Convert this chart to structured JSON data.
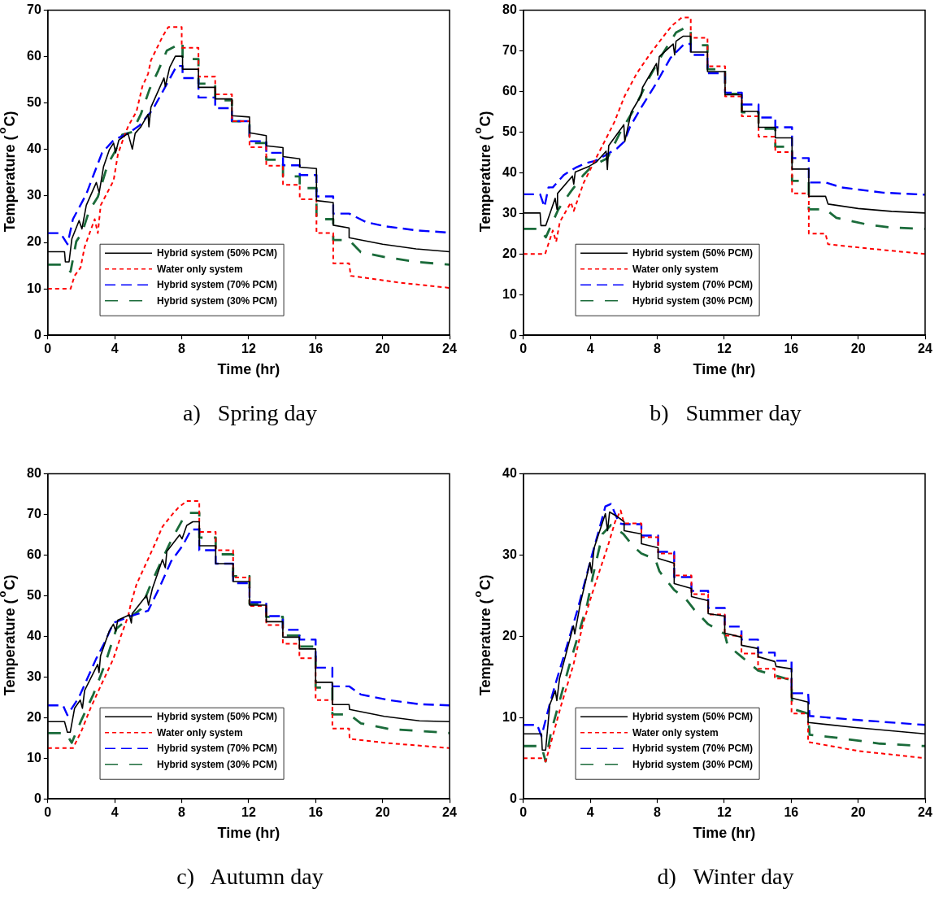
{
  "chart_data": [
    {
      "type": "line",
      "title": "a)   Spring day",
      "xlabel": "Time (hr)",
      "ylabel": "Temperature ($^{o}$C)",
      "xlim": [
        0,
        24
      ],
      "xticks": [
        0,
        4,
        8,
        12,
        16,
        20,
        24
      ],
      "ylim": [
        0,
        70
      ],
      "yticks": [
        0,
        10,
        20,
        30,
        40,
        50,
        60,
        70
      ],
      "legend": "bottom left",
      "series": [
        {
          "name": "Hybrid system (50% PCM)",
          "color": "#000000",
          "line_style": "solid",
          "x": [
            0,
            1.0,
            1.05,
            1.27,
            1.44,
            1.87,
            2.04,
            2.3,
            2.9,
            3.07,
            3.33,
            3.67,
            3.93,
            4.05,
            4.24,
            4.79,
            5.05,
            5.22,
            5.56,
            5.99,
            6.04,
            6.16,
            6.94,
            7.02,
            7.28,
            7.62,
            8.05,
            8.05,
            9,
            9,
            10,
            10,
            11,
            11,
            12.05,
            12.05,
            13.05,
            13.05,
            14.05,
            14.05,
            15.05,
            15.05,
            16.05,
            16.05,
            17.05,
            17.05,
            18,
            18,
            20,
            22,
            24
          ],
          "values": [
            18,
            18,
            15.8,
            15.8,
            20.8,
            24.7,
            22.9,
            28,
            32.9,
            30.7,
            36.3,
            39.9,
            41.4,
            39.3,
            42,
            43.5,
            40.1,
            43.5,
            44.9,
            47.6,
            44.9,
            49.1,
            55.4,
            53.6,
            57.7,
            60.1,
            60.1,
            57.3,
            57.3,
            53.4,
            53.4,
            50.9,
            50.9,
            47.3,
            47,
            43.6,
            43,
            40.8,
            40.4,
            38.5,
            38,
            36.2,
            35.9,
            29,
            28.6,
            23.7,
            23.1,
            21,
            19.6,
            18.6,
            18
          ]
        },
        {
          "name": "Water only system",
          "color": "#ff0000",
          "line_style": "dashed",
          "x": [
            0,
            1.36,
            1.6,
            1.96,
            2.2,
            2.8,
            2.99,
            3.16,
            3.93,
            4.19,
            4.45,
            4.8,
            5.3,
            5.65,
            5.99,
            6.16,
            6.85,
            7.2,
            8,
            8,
            9,
            9,
            10,
            10,
            11,
            11,
            12.05,
            12.05,
            13.05,
            13.05,
            14.05,
            14.05,
            15.05,
            15.05,
            16.05,
            16.05,
            17.05,
            17.05,
            18,
            18.1,
            21.1,
            24
          ],
          "values": [
            10,
            10,
            12.8,
            14.6,
            19,
            25,
            22,
            28,
            33.3,
            39,
            41.7,
            45,
            48.2,
            53.6,
            56.3,
            59.2,
            64.3,
            66.4,
            66.4,
            61.9,
            61.9,
            55.7,
            55.7,
            51.9,
            51.9,
            46.1,
            46.1,
            40.5,
            40.5,
            36.5,
            36.5,
            32.4,
            32.4,
            29.3,
            29.3,
            22,
            22,
            15.5,
            15.5,
            12.8,
            11.3,
            10.2
          ]
        },
        {
          "name": "Hybrid system (70% PCM)",
          "color": "#0000ff",
          "line_style": "dashed",
          "x": [
            0,
            0.76,
            1.18,
            1.5,
            2.3,
            2.73,
            3.24,
            3.93,
            4.8,
            5.48,
            6.25,
            6.85,
            7.7,
            8.05,
            8.05,
            9,
            9,
            10,
            10,
            11,
            11,
            12.05,
            12.05,
            13.05,
            13.05,
            14.05,
            14.05,
            15.05,
            15.05,
            16.05,
            16.05,
            17.05,
            17.05,
            18,
            19,
            20.1,
            22,
            24
          ],
          "values": [
            22,
            22,
            19.6,
            25,
            30.4,
            34.5,
            39.3,
            42,
            43.5,
            45.2,
            48.5,
            52.4,
            58,
            58,
            55.4,
            55.4,
            51.2,
            51.2,
            48.9,
            48.9,
            46.1,
            46.1,
            41.8,
            41.8,
            39.3,
            39.3,
            36.6,
            36.6,
            34.5,
            34.5,
            29.9,
            29.9,
            26.2,
            26.2,
            24.4,
            23.5,
            22.6,
            22.1
          ]
        },
        {
          "name": "Hybrid system (30% PCM)",
          "color": "#1a6b3a",
          "line_style": "dashed",
          "x": [
            0,
            1.0,
            1.36,
            1.7,
            2.04,
            2.47,
            2.99,
            3.59,
            4.02,
            4.45,
            5.05,
            5.56,
            6.08,
            6.6,
            7.11,
            8.05,
            8.05,
            9,
            9,
            10,
            10,
            11,
            11,
            12.05,
            12.05,
            13.05,
            13.05,
            14.05,
            14.05,
            15.05,
            15.05,
            16.05,
            16.05,
            17.05,
            17.05,
            18,
            18.7,
            20.2,
            22,
            24
          ],
          "values": [
            15.2,
            15.2,
            13.7,
            20.2,
            22,
            26.8,
            29.8,
            36.9,
            39.6,
            43.2,
            43.8,
            47.6,
            53,
            57,
            61.3,
            63.1,
            59.5,
            59.5,
            54.2,
            54.2,
            50.6,
            50.6,
            46.1,
            46.1,
            41.4,
            41.4,
            37.8,
            37.8,
            34.2,
            34.2,
            31.7,
            31.7,
            25,
            25,
            20.5,
            20.5,
            17.9,
            16.8,
            15.8,
            15.2
          ]
        }
      ]
    },
    {
      "type": "line",
      "title": "b)   Summer day",
      "xlabel": "Time (hr)",
      "ylabel": "Temperature ($^{o}$C)",
      "xlim": [
        0,
        24
      ],
      "xticks": [
        0,
        4,
        8,
        12,
        16,
        20,
        24
      ],
      "ylim": [
        0,
        80
      ],
      "yticks": [
        0,
        10,
        20,
        30,
        40,
        50,
        60,
        70,
        80
      ],
      "legend": "bottom left",
      "series": [
        {
          "name": "Hybrid system (50% PCM)",
          "color": "#000000",
          "line_style": "solid",
          "x": [
            0,
            1,
            1.05,
            1.34,
            1.9,
            2.01,
            2.04,
            2.93,
            3.01,
            3.1,
            3.93,
            4.35,
            4.94,
            5.02,
            5.1,
            6,
            6.06,
            6.44,
            7.03,
            7.12,
            7.95,
            8.03,
            8.12,
            8.95,
            9.04,
            9.12,
            9.54,
            10,
            10,
            11,
            11,
            12.05,
            12.05,
            13.05,
            13.05,
            14.05,
            14.05,
            15.05,
            15.05,
            16.05,
            16.05,
            17.05,
            17.05,
            18.05,
            18.2,
            20,
            22,
            24
          ],
          "values": [
            30.1,
            30.1,
            27,
            27,
            33.7,
            31,
            34.9,
            39.2,
            37.2,
            40.2,
            41.6,
            42.6,
            45.3,
            40.8,
            46.7,
            51.8,
            47.7,
            54.9,
            59,
            61,
            66.9,
            64,
            68.6,
            71.7,
            69,
            72.4,
            73.6,
            73.6,
            69.7,
            69.7,
            64.9,
            64.9,
            59.2,
            59.2,
            55.1,
            55.1,
            51.2,
            51.2,
            48.6,
            48.6,
            40.9,
            40.9,
            34.2,
            34.2,
            32.3,
            31.2,
            30.5,
            30.1
          ]
        },
        {
          "name": "Water only system",
          "color": "#ff0000",
          "line_style": "dashed",
          "x": [
            0,
            1.3,
            1.76,
            1.96,
            2.18,
            2.84,
            3.01,
            3.6,
            4.18,
            4.85,
            5.44,
            6.03,
            6.78,
            7.53,
            8.28,
            8.87,
            9.46,
            10,
            10,
            11,
            11,
            12.05,
            12.05,
            13.05,
            13.05,
            14.05,
            14.05,
            15.05,
            15.05,
            16.05,
            16.05,
            17.05,
            17.05,
            18.05,
            18.2,
            20.5,
            24
          ],
          "values": [
            20,
            20,
            25.8,
            23,
            27.9,
            32.7,
            30.6,
            37.5,
            42.3,
            47.7,
            52.5,
            58.7,
            64.5,
            69,
            73.1,
            76.2,
            78.2,
            78.2,
            73.2,
            73.2,
            66.2,
            66.2,
            58.8,
            58.8,
            53.9,
            53.9,
            48.9,
            48.9,
            45.1,
            45.1,
            34.9,
            34.9,
            25,
            25,
            22.4,
            21.4,
            20
          ]
        },
        {
          "name": "Hybrid system (70% PCM)",
          "color": "#0000ff",
          "line_style": "dashed",
          "x": [
            0,
            1,
            1.26,
            1.5,
            1.76,
            2.43,
            3.1,
            3.68,
            4.27,
            4.77,
            5.6,
            6.03,
            6.36,
            7.03,
            7.95,
            8.79,
            9.62,
            10,
            10,
            11,
            11,
            12.05,
            12.05,
            13.05,
            13.05,
            14.05,
            14.05,
            15.05,
            15.05,
            16.05,
            16.05,
            17.05,
            17.05,
            18.05,
            19,
            21.5,
            24
          ],
          "values": [
            34.7,
            34.7,
            31.6,
            36.4,
            36.4,
            39.5,
            41.2,
            42.3,
            42.9,
            44,
            46,
            47.7,
            51.2,
            56,
            62.1,
            68.3,
            71.7,
            71.7,
            69,
            69,
            64.5,
            64.5,
            59.7,
            59.7,
            56.8,
            56.8,
            53.6,
            53.6,
            51.2,
            51.2,
            43.6,
            43.6,
            37.6,
            37.6,
            36.4,
            35.1,
            34.6
          ]
        },
        {
          "name": "Hybrid system (30% PCM)",
          "color": "#1a6b3a",
          "line_style": "dashed",
          "x": [
            0,
            1,
            1.34,
            2.09,
            2.84,
            3.6,
            4.1,
            5.02,
            5.77,
            6.61,
            7.53,
            8.28,
            9.12,
            9.62,
            10,
            10,
            11,
            11,
            12.05,
            12.05,
            13.05,
            13.05,
            14.05,
            14.05,
            15.05,
            15.05,
            16.05,
            16.05,
            17.05,
            17.05,
            18.05,
            18.7,
            20.5,
            22,
            24
          ],
          "values": [
            26.2,
            26.2,
            24.1,
            31,
            35.4,
            39.5,
            41.6,
            43.6,
            49.8,
            55.6,
            63.5,
            69,
            74.5,
            75.6,
            75.6,
            71.4,
            71.4,
            65.5,
            65.5,
            59.4,
            59.4,
            54.9,
            54.9,
            50.8,
            50.8,
            46.4,
            46.4,
            38,
            38,
            31,
            31,
            28.9,
            27.3,
            26.5,
            26.2
          ]
        }
      ]
    },
    {
      "type": "line",
      "title": "c)   Autumn day",
      "xlabel": "Time (hr)",
      "ylabel": "Temperature ($^{o}$C)",
      "xlim": [
        0,
        24
      ],
      "xticks": [
        0,
        4,
        8,
        12,
        16,
        20,
        24
      ],
      "ylim": [
        0,
        80
      ],
      "yticks": [
        0,
        10,
        20,
        30,
        40,
        50,
        60,
        70,
        80
      ],
      "legend": "bottom left",
      "series": [
        {
          "name": "Hybrid system (50% PCM)",
          "color": "#000000",
          "line_style": "solid",
          "x": [
            0,
            1,
            1.17,
            1.34,
            1.6,
            1.94,
            2.07,
            2.2,
            2.98,
            3.06,
            3.15,
            3.67,
            3.92,
            4.06,
            4.18,
            4.87,
            4.99,
            5.04,
            5.9,
            6.02,
            6.25,
            6.85,
            7.02,
            7.11,
            7.88,
            8.02,
            8.3,
            8.66,
            9.05,
            9.05,
            10.03,
            10.03,
            11.07,
            11.07,
            12.05,
            12.05,
            13.05,
            13.05,
            14.04,
            14.04,
            15.03,
            15.03,
            16,
            16,
            17,
            17,
            18,
            18.03,
            20.1,
            22.2,
            24
          ],
          "values": [
            19,
            19,
            16.4,
            16.4,
            22.3,
            24.3,
            22.3,
            26.7,
            33.1,
            31.1,
            35.2,
            41.3,
            43,
            41.3,
            44,
            45.3,
            43.3,
            45.6,
            50.1,
            47.7,
            51.8,
            58.9,
            56.9,
            60.9,
            65,
            64,
            67.3,
            68.2,
            68.2,
            62.3,
            62.3,
            57.9,
            57.9,
            53.5,
            53.5,
            47.7,
            47.7,
            43.6,
            43.6,
            39.8,
            39.8,
            36.9,
            36.9,
            28.7,
            28.7,
            23.2,
            23.2,
            22,
            20.3,
            19.2,
            19
          ]
        },
        {
          "name": "Water only system",
          "color": "#ff0000",
          "line_style": "dashed",
          "x": [
            0,
            1.51,
            2.03,
            2.55,
            3.15,
            3.92,
            4.35,
            4.8,
            4.96,
            5.3,
            5.9,
            6.42,
            6.85,
            7.37,
            7.8,
            8.3,
            9.05,
            9.05,
            10.03,
            10.03,
            11.07,
            11.07,
            12.05,
            12.05,
            13.05,
            13.05,
            14.04,
            14.04,
            15.03,
            15.03,
            16,
            16,
            17,
            17,
            18,
            18.03,
            20.1,
            24
          ],
          "values": [
            12.5,
            12.5,
            16.9,
            22.3,
            27.7,
            34.5,
            39.9,
            45,
            48,
            52.8,
            58.2,
            62.9,
            67,
            69.7,
            71.7,
            73.3,
            73.3,
            65.7,
            65.7,
            61.2,
            61.2,
            54.5,
            54.5,
            47.5,
            47.5,
            42.8,
            42.8,
            38.2,
            38.2,
            34.6,
            34.6,
            24.3,
            24.3,
            17.3,
            17.3,
            14.8,
            13.8,
            12.5
          ]
        },
        {
          "name": "Hybrid system (70% PCM)",
          "color": "#0000ff",
          "line_style": "dashed",
          "x": [
            0,
            0.91,
            1.17,
            1.86,
            2.37,
            2.89,
            3.41,
            3.92,
            4.96,
            5.99,
            6.68,
            7.37,
            8.05,
            8.57,
            9.05,
            9.05,
            10.03,
            10.03,
            11.07,
            11.07,
            12.05,
            12.05,
            13.05,
            13.05,
            14.04,
            14.04,
            15.03,
            15.03,
            16,
            16,
            17,
            17,
            18,
            18.7,
            20.4,
            22.2,
            24
          ],
          "values": [
            23,
            23,
            20.6,
            25,
            29.7,
            34.5,
            38.6,
            43.3,
            45,
            46.3,
            52.1,
            58.5,
            62.3,
            66.3,
            66.3,
            61.2,
            61.2,
            57.9,
            57.9,
            53.1,
            53.1,
            48.4,
            48.4,
            45,
            45,
            41.6,
            41.6,
            39.2,
            39.2,
            32.3,
            32.3,
            27.7,
            27.7,
            25.7,
            24.3,
            23.3,
            23
          ]
        },
        {
          "name": "Hybrid system (30% PCM)",
          "color": "#1a6b3a",
          "line_style": "dashed",
          "x": [
            0,
            1.08,
            1.43,
            2.03,
            2.72,
            3.41,
            4.1,
            4.8,
            5.56,
            6.08,
            6.59,
            7.37,
            8.05,
            8.4,
            9.05,
            9.05,
            10.03,
            10.03,
            11.07,
            11.07,
            12.05,
            12.05,
            13.05,
            13.05,
            14.04,
            14.04,
            15.03,
            15.03,
            16,
            16,
            17,
            17,
            18,
            18.7,
            20.4,
            24
          ],
          "values": [
            16.2,
            16.2,
            13.8,
            19.6,
            25.7,
            33.1,
            41.9,
            44.3,
            46.7,
            52.1,
            56.8,
            63.6,
            68.7,
            70.4,
            70.4,
            64.3,
            64.3,
            60.2,
            60.2,
            54.8,
            54.8,
            48,
            48,
            44.8,
            44.8,
            40.2,
            40.2,
            37.5,
            37.5,
            27.4,
            27.4,
            20.8,
            20.8,
            18.6,
            17.2,
            16.2
          ]
        }
      ]
    },
    {
      "type": "line",
      "title": "d)   Winter day",
      "xlabel": "Time (hr)",
      "ylabel": "Temperature ($^{o}$C)",
      "xlim": [
        0,
        24
      ],
      "xticks": [
        0,
        4,
        8,
        12,
        16,
        20,
        24
      ],
      "ylim": [
        0,
        40
      ],
      "yticks": [
        0,
        10,
        20,
        30,
        40
      ],
      "legend": "bottom left",
      "series": [
        {
          "name": "Hybrid system (50% PCM)",
          "color": "#000000",
          "line_style": "solid",
          "x": [
            0,
            1.08,
            1.13,
            1.33,
            1.58,
            1.91,
            2,
            2.16,
            2.99,
            3.07,
            3.4,
            3.98,
            4.07,
            4.23,
            4.9,
            5.03,
            5.15,
            5.64,
            6.02,
            6.02,
            7.05,
            7.05,
            8.05,
            8.05,
            9.01,
            9.01,
            10.04,
            10.04,
            11.04,
            11.04,
            12.03,
            12.03,
            13.03,
            13.03,
            14.02,
            14.02,
            15.02,
            15.1,
            16.02,
            16.02,
            17.01,
            17.01,
            19.7,
            24
          ],
          "values": [
            8,
            8,
            6,
            6,
            11.6,
            13.3,
            12.1,
            14.8,
            21.3,
            20.3,
            24,
            29.1,
            27.8,
            30.9,
            35.1,
            33,
            35.3,
            34.7,
            34.1,
            33,
            32.6,
            31.4,
            30.9,
            29.6,
            29,
            26.5,
            25.9,
            24.9,
            24.4,
            22.8,
            22.5,
            20.4,
            19.9,
            18.9,
            18.5,
            17.5,
            16.9,
            16.3,
            16,
            12.4,
            11.9,
            9.4,
            8.8,
            8
          ]
        },
        {
          "name": "Water only system",
          "color": "#ff0000",
          "line_style": "dashed",
          "x": [
            0,
            1.08,
            1.33,
            1.74,
            2.24,
            2.99,
            3.57,
            4.07,
            4.56,
            5.06,
            5.48,
            5.81,
            6.02,
            7.05,
            7.05,
            8.05,
            8.05,
            9.01,
            9.01,
            10.04,
            10.04,
            11.04,
            11.04,
            12.03,
            12.03,
            13.03,
            13.03,
            14.02,
            14.02,
            15.02,
            15.02,
            16.02,
            16.02,
            17.01,
            17.01,
            20,
            24
          ],
          "values": [
            5,
            5,
            4.6,
            7.6,
            11.4,
            16.5,
            21.6,
            25,
            28.1,
            31.2,
            34.1,
            35.5,
            33.9,
            33.9,
            32.2,
            32.2,
            30.2,
            30.2,
            27.5,
            27.5,
            25.2,
            25.2,
            22.7,
            22.7,
            20.1,
            20.1,
            17.9,
            17.9,
            16,
            16,
            14.8,
            14.8,
            10.5,
            10.5,
            7,
            5.9,
            5
          ]
        },
        {
          "name": "Hybrid system (70% PCM)",
          "color": "#0000ff",
          "line_style": "dashed",
          "x": [
            0,
            0.83,
            1.08,
            1.58,
            1.91,
            2.57,
            3.24,
            3.98,
            4.56,
            4.9,
            5.23,
            5.73,
            6.02,
            7.05,
            7.05,
            8.05,
            8.05,
            9.01,
            9.01,
            10.04,
            10.04,
            11.04,
            11.04,
            12.03,
            12.03,
            13.03,
            13.03,
            14.02,
            14.02,
            15.02,
            15.02,
            16.02,
            16.02,
            17.01,
            17.1,
            20,
            24
          ],
          "values": [
            9.1,
            9.1,
            7.7,
            11.7,
            14.1,
            18.6,
            23.3,
            29.1,
            33.4,
            36,
            36.3,
            33.9,
            33.8,
            33.8,
            32.4,
            32.4,
            30.4,
            30.4,
            27.3,
            27.3,
            25.6,
            25.6,
            23.5,
            23.5,
            21.2,
            21.2,
            19.6,
            19.6,
            18,
            18,
            17,
            17,
            13,
            13,
            10.2,
            9.7,
            9.1
          ]
        },
        {
          "name": "Hybrid system (30% PCM)",
          "color": "#1a6b3a",
          "line_style": "dashed",
          "x": [
            0,
            1.08,
            1.33,
            1.66,
            2.08,
            2.66,
            3.24,
            3.82,
            4.15,
            4.73,
            5.23,
            5.98,
            6.56,
            7.05,
            7.88,
            8.13,
            9.01,
            9.71,
            10.2,
            11.04,
            12.03,
            12.2,
            13.03,
            14.02,
            16.02,
            16.05,
            17.01,
            17.1,
            18.8,
            21.3,
            24
          ],
          "values": [
            6.5,
            6.5,
            4.6,
            8.3,
            11.4,
            15.8,
            19.9,
            24,
            27.4,
            32.6,
            33.7,
            32.6,
            31.1,
            30.2,
            29.5,
            28,
            25.7,
            24.6,
            23.3,
            21.5,
            20.3,
            18.9,
            17.5,
            15.8,
            14.6,
            11.1,
            10.5,
            7.9,
            7.5,
            6.8,
            6.5
          ]
        }
      ]
    }
  ]
}
